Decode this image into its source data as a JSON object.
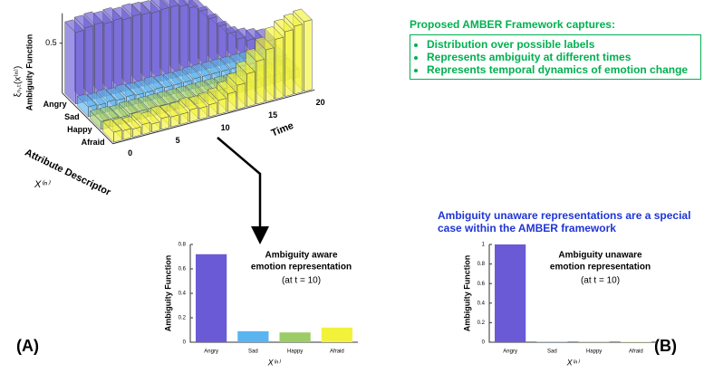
{
  "chart_data": [
    {
      "type": "bar3d",
      "zlabel": [
        "ξₙ,ₜ(x⁽ⁿ⁾)",
        "Ambiguity Function"
      ],
      "xlabel": "Time",
      "ylabel": "Attribute Descriptor",
      "ysymbol": "X⁽ⁿ⁾",
      "x": [
        0,
        1,
        2,
        3,
        4,
        5,
        6,
        7,
        8,
        9,
        10,
        11,
        12,
        13,
        14,
        15,
        16,
        17,
        18,
        19,
        20
      ],
      "xticks": [
        0,
        5,
        10,
        15,
        20
      ],
      "zlim": [
        0,
        0.8
      ],
      "zticks": [
        0.5
      ],
      "series": [
        {
          "name": "Angry",
          "color": "#6a5ad6",
          "values": [
            0.72,
            0.74,
            0.75,
            0.73,
            0.74,
            0.72,
            0.73,
            0.72,
            0.71,
            0.72,
            0.72,
            0.7,
            0.66,
            0.6,
            0.5,
            0.4,
            0.3,
            0.22,
            0.18,
            0.15,
            0.12
          ]
        },
        {
          "name": "Sad",
          "color": "#5ab4f0",
          "values": [
            0.1,
            0.09,
            0.1,
            0.09,
            0.1,
            0.09,
            0.09,
            0.1,
            0.09,
            0.09,
            0.09,
            0.1,
            0.1,
            0.1,
            0.1,
            0.1,
            0.1,
            0.1,
            0.09,
            0.09,
            0.09
          ]
        },
        {
          "name": "Happy",
          "color": "#9ccc66",
          "values": [
            0.08,
            0.08,
            0.07,
            0.08,
            0.08,
            0.08,
            0.08,
            0.08,
            0.08,
            0.08,
            0.08,
            0.08,
            0.08,
            0.08,
            0.08,
            0.08,
            0.08,
            0.08,
            0.08,
            0.08,
            0.08
          ]
        },
        {
          "name": "Afraid",
          "color": "#f2f23a",
          "values": [
            0.1,
            0.09,
            0.08,
            0.1,
            0.08,
            0.11,
            0.1,
            0.1,
            0.12,
            0.11,
            0.12,
            0.14,
            0.18,
            0.24,
            0.33,
            0.43,
            0.52,
            0.6,
            0.65,
            0.68,
            0.7
          ]
        }
      ]
    },
    {
      "type": "bar",
      "ylabel": "Ambiguity Function",
      "xlabel": "X⁽ⁿ⁾",
      "annotation": [
        "Ambiguity aware",
        "emotion representation"
      ],
      "note": "(at t = 10)",
      "categories": [
        "Angry",
        "Sad",
        "Happy",
        "Afraid"
      ],
      "values": [
        0.72,
        0.09,
        0.08,
        0.12
      ],
      "colors": [
        "#6a5ad6",
        "#5ab4f0",
        "#9ccc66",
        "#f2f23a"
      ],
      "ylim": [
        0,
        0.8
      ],
      "yticks": [
        0,
        0.2,
        0.4,
        0.6,
        0.8
      ]
    },
    {
      "type": "bar",
      "ylabel": "Ambiguity Function",
      "xlabel": "X⁽ⁿ⁾",
      "annotation": [
        "Ambiguity unaware",
        "emotion representation"
      ],
      "note": "(at t = 10)",
      "categories": [
        "Angry",
        "Sad",
        "Happy",
        "Afraid"
      ],
      "values": [
        1,
        0.005,
        0.005,
        0.005
      ],
      "colors": [
        "#6a5ad6",
        "#5ab4f0",
        "#9ccc66",
        "#f2f23a"
      ],
      "ylim": [
        0,
        1
      ],
      "yticks": [
        0,
        0.2,
        0.4,
        0.6,
        0.8,
        1
      ]
    }
  ],
  "framework": {
    "title": "Proposed AMBER Framework captures:",
    "bullets": [
      "Distribution over possible labels",
      "Represents ambiguity at different times",
      "Represents temporal dynamics of emotion change"
    ]
  },
  "unaware_note": "Ambiguity unaware representations are a special case within the AMBER framework",
  "panel_labels": [
    "(A)",
    "(B)"
  ]
}
